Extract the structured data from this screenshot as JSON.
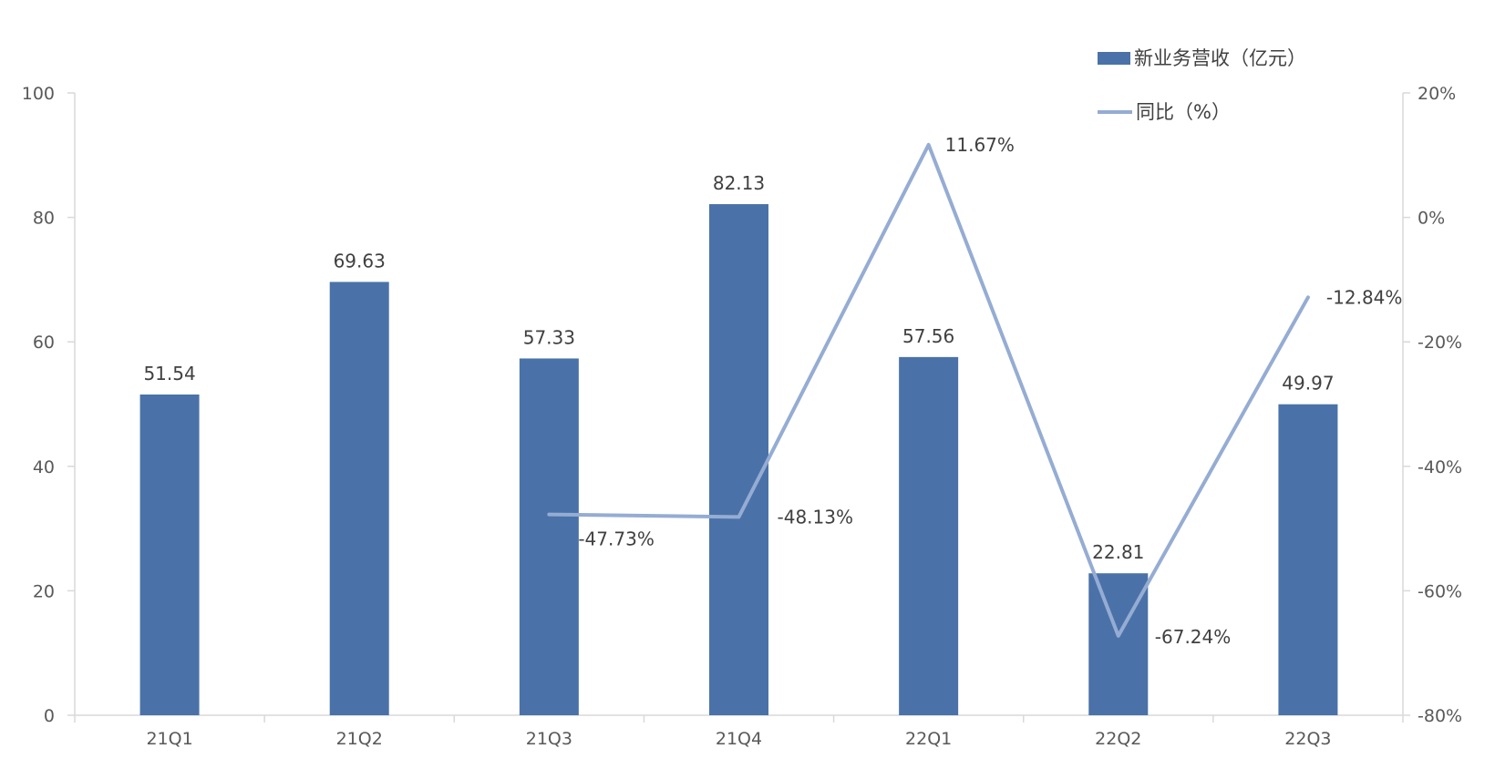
{
  "chart_data": {
    "type": "bar",
    "categories": [
      "21Q1",
      "21Q2",
      "21Q3",
      "21Q4",
      "22Q1",
      "22Q2",
      "22Q3"
    ],
    "series": [
      {
        "name": "新业务营收（亿元）",
        "type": "bar",
        "axis": "left",
        "values": [
          51.54,
          69.63,
          57.33,
          82.13,
          57.56,
          22.81,
          49.97
        ],
        "labels": [
          "51.54",
          "69.63",
          "57.33",
          "82.13",
          "57.56",
          "22.81",
          "49.97"
        ],
        "color": "#4a72a8"
      },
      {
        "name": "同比（%）",
        "type": "line",
        "axis": "right",
        "values": [
          null,
          null,
          -47.73,
          -48.13,
          11.67,
          -67.24,
          -12.84
        ],
        "labels": [
          "",
          "",
          "-47.73%",
          "-48.13%",
          "11.67%",
          "-67.24%",
          "-12.84%"
        ],
        "color": "#95acd3"
      }
    ],
    "ylim": [
      0,
      100
    ],
    "yticks": [
      "0",
      "20",
      "40",
      "60",
      "80",
      "100"
    ],
    "y2lim": [
      -80,
      20
    ],
    "y2ticks": [
      "-80%",
      "-60%",
      "-40%",
      "-20%",
      "0%",
      "20%"
    ],
    "title": "",
    "xlabel": "",
    "ylabel": "",
    "grid": false,
    "legend_position": "top-right"
  }
}
